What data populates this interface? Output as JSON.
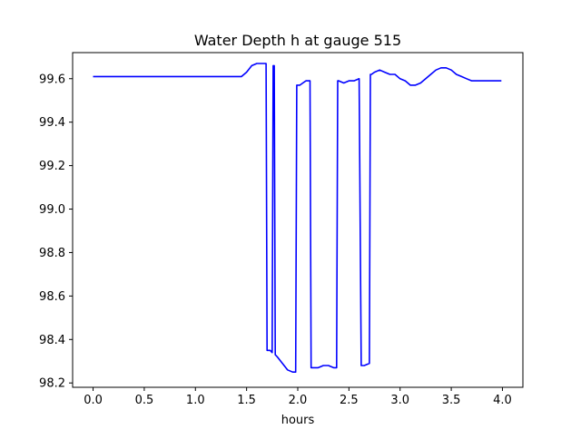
{
  "chart_data": {
    "type": "line",
    "title": "Water Depth h at gauge 515",
    "xlabel": "hours",
    "ylabel": "",
    "xlim": [
      -0.2,
      4.2
    ],
    "ylim": [
      98.18,
      99.72
    ],
    "xticks": [
      0.0,
      0.5,
      1.0,
      1.5,
      2.0,
      2.5,
      3.0,
      3.5,
      4.0
    ],
    "xtick_labels": [
      "0.0",
      "0.5",
      "1.0",
      "1.5",
      "2.0",
      "2.5",
      "3.0",
      "3.5",
      "4.0"
    ],
    "yticks": [
      98.2,
      98.4,
      98.6,
      98.8,
      99.0,
      99.2,
      99.4,
      99.6
    ],
    "ytick_labels": [
      "98.2",
      "98.4",
      "98.6",
      "98.8",
      "99.0",
      "99.2",
      "99.4",
      "99.6"
    ],
    "grid": false,
    "series": [
      {
        "color": "#0000ff",
        "x": [
          0.0,
          0.5,
          1.0,
          1.45,
          1.5,
          1.55,
          1.6,
          1.65,
          1.69,
          1.7,
          1.71,
          1.73,
          1.75,
          1.76,
          1.77,
          1.78,
          1.8,
          1.85,
          1.9,
          1.95,
          1.98,
          1.99,
          2.0,
          2.02,
          2.05,
          2.08,
          2.12,
          2.13,
          2.14,
          2.16,
          2.2,
          2.25,
          2.3,
          2.35,
          2.38,
          2.39,
          2.4,
          2.45,
          2.5,
          2.55,
          2.6,
          2.62,
          2.63,
          2.65,
          2.7,
          2.71,
          2.72,
          2.75,
          2.8,
          2.85,
          2.9,
          2.95,
          3.0,
          3.05,
          3.1,
          3.15,
          3.2,
          3.25,
          3.3,
          3.35,
          3.4,
          3.45,
          3.5,
          3.55,
          3.6,
          3.65,
          3.7,
          3.75,
          3.8,
          3.85,
          3.9,
          3.95,
          3.99
        ],
        "y": [
          99.61,
          99.61,
          99.61,
          99.61,
          99.63,
          99.66,
          99.67,
          99.67,
          99.67,
          98.35,
          98.35,
          98.35,
          98.34,
          99.66,
          99.66,
          98.33,
          98.32,
          98.29,
          98.26,
          98.25,
          98.25,
          99.57,
          99.57,
          99.57,
          99.58,
          99.59,
          99.59,
          98.27,
          98.27,
          98.27,
          98.27,
          98.28,
          98.28,
          98.27,
          98.27,
          99.59,
          99.59,
          99.58,
          99.59,
          99.59,
          99.6,
          98.28,
          98.28,
          98.28,
          98.29,
          99.62,
          99.62,
          99.63,
          99.64,
          99.63,
          99.62,
          99.62,
          99.6,
          99.59,
          99.57,
          99.57,
          99.58,
          99.6,
          99.62,
          99.64,
          99.65,
          99.65,
          99.64,
          99.62,
          99.61,
          99.6,
          99.59,
          99.59,
          99.59,
          99.59,
          99.59,
          99.59,
          99.59
        ]
      }
    ]
  }
}
